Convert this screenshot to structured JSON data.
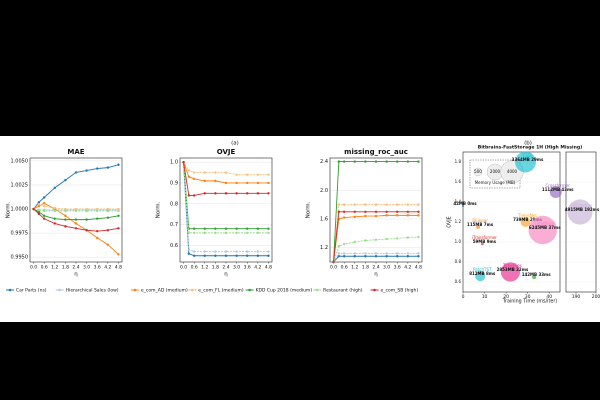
{
  "chart_data": [
    {
      "type": "line-panels",
      "panel_label": "(a)",
      "x": [
        0,
        0.3,
        0.6,
        1.2,
        1.8,
        2.4,
        3.0,
        3.6,
        4.2,
        4.8
      ],
      "xlim": [
        -0.2,
        5.0
      ],
      "xticks": [
        {
          "value": 0,
          "label": "0.0"
        },
        0.6,
        1.2,
        1.8,
        2.4,
        {
          "value": 3,
          "label": "3.0"
        },
        3.6,
        4.2,
        4.8
      ],
      "xlabel": "η",
      "legend": [
        {
          "name": "Car Parts (ns)",
          "color": "#1f77b4"
        },
        {
          "name": "Hierarchical Sales (low)",
          "color": "#aec7e8"
        },
        {
          "name": "e_com_AD (medium)",
          "color": "#ff7f0e"
        },
        {
          "name": "e_com_FL (medium)",
          "color": "#ffbb78"
        },
        {
          "name": "KDD Cup 2018 (medium)",
          "color": "#2ca02c"
        },
        {
          "name": "Restaurant (high)",
          "color": "#98df8a"
        },
        {
          "name": "e_com_SB (high)",
          "color": "#d62728"
        }
      ],
      "panels": [
        {
          "title": "MAE",
          "ylabel": "Norm.",
          "ylim": [
            0.9945,
            1.0053
          ],
          "yticks": [
            {
              "value": 0.995,
              "label": "0.9950"
            },
            0.9975,
            {
              "value": 1,
              "label": "1.0000"
            },
            1.0025,
            {
              "value": 1.005,
              "label": "1.0050"
            }
          ],
          "series": [
            {
              "values": [
                1.0,
                1.0007,
                1.0012,
                1.0022,
                1.003,
                1.0038,
                1.004,
                1.0042,
                1.0043,
                1.0046
              ]
            },
            {
              "values": [
                1.0,
                0.9999,
                0.9999,
                0.9999,
                0.9999,
                0.9999,
                0.9999,
                0.9999,
                0.9999,
                0.9999
              ]
            },
            {
              "values": [
                1.0,
                1.0003,
                1.0006,
                1.0,
                0.9993,
                0.9985,
                0.9978,
                0.997,
                0.9963,
                0.9953
              ]
            },
            {
              "values": [
                1.0,
                1.0005,
                1.0003,
                1.0001,
                1.0,
                1.0,
                1.0,
                1.0,
                1.0,
                1.0
              ]
            },
            {
              "values": [
                1.0,
                0.9997,
                0.9993,
                0.999,
                0.9989,
                0.9989,
                0.9989,
                0.999,
                0.9991,
                0.9993
              ]
            },
            {
              "values": [
                1.0,
                0.9999,
                0.9998,
                0.9998,
                0.9998,
                0.9998,
                0.9998,
                0.9998,
                0.9998,
                0.9998
              ]
            },
            {
              "values": [
                1.0,
                0.9995,
                0.999,
                0.9985,
                0.9982,
                0.998,
                0.9978,
                0.9977,
                0.9978,
                0.998
              ]
            }
          ]
        },
        {
          "title": "OVJE",
          "ylabel": "Norm.",
          "ylim": [
            0.52,
            1.02
          ],
          "yticks": [
            0.6,
            0.7,
            0.8,
            0.9,
            {
              "value": 1,
              "label": "1.0"
            }
          ],
          "series": [
            {
              "values": [
                1.0,
                0.56,
                0.55,
                0.55,
                0.55,
                0.55,
                0.55,
                0.55,
                0.55,
                0.55
              ]
            },
            {
              "values": [
                1.0,
                0.58,
                0.57,
                0.57,
                0.57,
                0.57,
                0.57,
                0.57,
                0.57,
                0.57
              ]
            },
            {
              "values": [
                1.0,
                0.93,
                0.92,
                0.91,
                0.91,
                0.9,
                0.9,
                0.9,
                0.9,
                0.9
              ]
            },
            {
              "values": [
                1.0,
                0.96,
                0.95,
                0.95,
                0.95,
                0.95,
                0.94,
                0.94,
                0.94,
                0.94
              ]
            },
            {
              "values": [
                1.0,
                0.68,
                0.68,
                0.68,
                0.68,
                0.68,
                0.68,
                0.68,
                0.68,
                0.68
              ]
            },
            {
              "values": [
                1.0,
                0.66,
                0.66,
                0.66,
                0.66,
                0.66,
                0.66,
                0.66,
                0.66,
                0.66
              ]
            },
            {
              "values": [
                1.0,
                0.84,
                0.84,
                0.85,
                0.85,
                0.85,
                0.85,
                0.85,
                0.85,
                0.85
              ]
            }
          ]
        },
        {
          "title": "missing_roc_auc",
          "ylabel": "Norm.",
          "ylim": [
            1.0,
            2.45
          ],
          "yticks": [
            1.2,
            1.6,
            {
              "value": 2,
              "label": "2.0"
            },
            2.4
          ],
          "series": [
            {
              "values": [
                1.0,
                1.08,
                1.08,
                1.08,
                1.08,
                1.08,
                1.08,
                1.08,
                1.08,
                1.08
              ]
            },
            {
              "values": [
                1.0,
                1.12,
                1.12,
                1.12,
                1.12,
                1.12,
                1.12,
                1.12,
                1.12,
                1.12
              ]
            },
            {
              "values": [
                1.0,
                1.6,
                1.62,
                1.63,
                1.64,
                1.64,
                1.65,
                1.65,
                1.65,
                1.65
              ]
            },
            {
              "values": [
                1.0,
                1.8,
                1.8,
                1.8,
                1.8,
                1.8,
                1.8,
                1.8,
                1.8,
                1.8
              ]
            },
            {
              "values": [
                1.0,
                2.4,
                2.4,
                2.4,
                2.4,
                2.4,
                2.4,
                2.4,
                2.4,
                2.4
              ]
            },
            {
              "values": [
                1.0,
                1.22,
                1.25,
                1.28,
                1.3,
                1.31,
                1.32,
                1.33,
                1.34,
                1.35
              ]
            },
            {
              "values": [
                1.0,
                1.7,
                1.7,
                1.7,
                1.7,
                1.7,
                1.7,
                1.7,
                1.7,
                1.7
              ]
            }
          ]
        }
      ]
    },
    {
      "type": "bubble",
      "panel_label": "(b)",
      "title": "Bitbrains-FastStorage 1H (High Missing)",
      "xlabel": "Training Time (ms/iter)",
      "ylabel": "OVJE",
      "xlim": [
        0,
        45
      ],
      "x2lim": [
        185,
        200
      ],
      "xticks": [
        0,
        10,
        20,
        30,
        40
      ],
      "x2ticks": [
        190,
        200
      ],
      "ylim": [
        0.5,
        1.9
      ],
      "yticks": [
        0.6,
        0.8,
        {
          "value": 1,
          "label": "1.0"
        },
        1.2,
        1.4,
        1.6,
        1.8
      ],
      "size_legend_title": "Memory Usage (MB)",
      "size_legend": [
        500,
        2000,
        4000
      ],
      "points": [
        {
          "name": "CSDI",
          "label": "3364MB 29ms",
          "x": 29,
          "y": 1.8,
          "size": 3364,
          "color": "#17becf"
        },
        {
          "label": "42MB 0ms",
          "x": 0,
          "y": 1.36,
          "size": 42,
          "color": "#1f77b4"
        },
        {
          "name": "DLinear",
          "label": "115MB 7ms",
          "x": 7,
          "y": 1.15,
          "size": 115,
          "color": "#ff7f0e"
        },
        {
          "name": "iTransformer",
          "label": "59MB 9ms",
          "x": 9,
          "y": 0.98,
          "size": 59,
          "color": "#d62728"
        },
        {
          "name": "PatchTST",
          "label": "812MB 8ms",
          "x": 8,
          "y": 0.66,
          "size": 812,
          "color": "#17becf"
        },
        {
          "name": "TimesNet",
          "label": "739MB 29ms",
          "x": 29,
          "y": 1.2,
          "size": 739,
          "color": "#ff9f1c"
        },
        {
          "name": "TimeFlies",
          "label": "2853MB 22ms",
          "x": 22,
          "y": 0.7,
          "size": 2853,
          "color": "#e7298a"
        },
        {
          "name": "Crossformer",
          "label": "1112MB 43ms",
          "x": 43,
          "y": 1.5,
          "size": 1112,
          "color": "#9467bd"
        },
        {
          "name": "FEDformer",
          "label": "4915MB 192ms",
          "x": 192,
          "y": 1.3,
          "size": 4915,
          "color": "#c5b0d5"
        },
        {
          "name": "TimeMixer",
          "label": "6245MB 37ms",
          "x": 37,
          "y": 1.12,
          "size": 6245,
          "color": "#f781bf"
        },
        {
          "label": "142MB 33ms",
          "x": 33,
          "y": 0.65,
          "size": 142,
          "color": "#2ca02c"
        }
      ]
    }
  ]
}
